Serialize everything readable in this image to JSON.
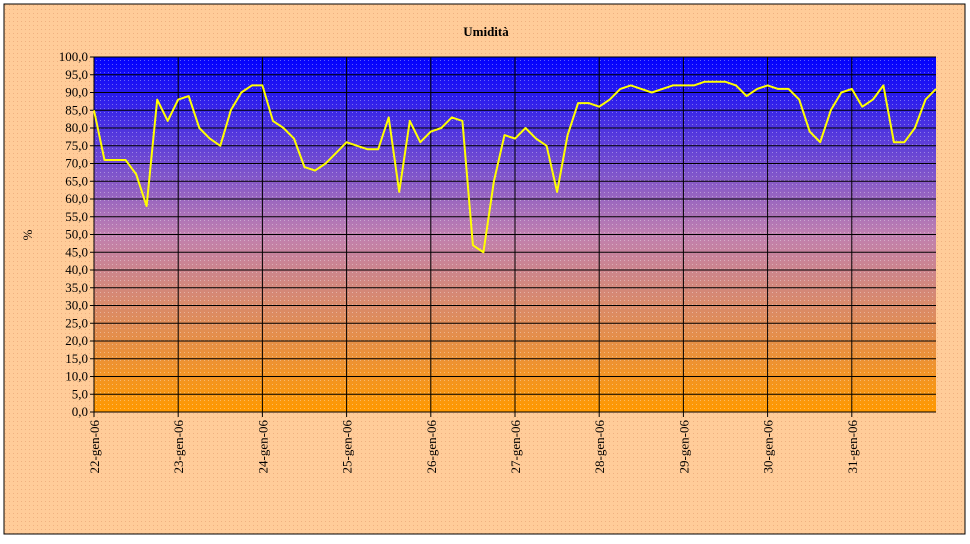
{
  "chart_data": {
    "type": "line",
    "title": "Umidità",
    "ylabel": "%",
    "x": [
      0,
      3,
      6,
      9,
      12,
      15,
      18,
      21,
      24,
      27,
      30,
      33,
      36,
      39,
      42,
      45,
      48,
      51,
      54,
      57,
      60,
      63,
      66,
      69,
      72,
      75,
      78,
      81,
      84,
      87,
      90,
      93,
      96,
      99,
      102,
      105,
      108,
      111,
      114,
      117,
      120,
      123,
      126,
      129,
      132,
      135,
      138,
      141,
      144,
      147,
      150,
      153,
      156,
      159,
      162,
      165,
      168,
      171,
      174,
      177,
      180,
      183,
      186,
      189,
      192,
      195,
      198,
      201,
      204,
      207,
      210,
      213,
      216,
      219,
      222,
      225,
      228,
      231,
      234,
      237,
      240
    ],
    "values": [
      85,
      71,
      71,
      71,
      67,
      58,
      88,
      82,
      88,
      89,
      80,
      77,
      75,
      85,
      90,
      92,
      92,
      82,
      80,
      77,
      69,
      68,
      70,
      73,
      76,
      75,
      74,
      74,
      83,
      62,
      82,
      76,
      79,
      80,
      83,
      82,
      47,
      45,
      65,
      78,
      77,
      80,
      77,
      75,
      62,
      78,
      87,
      87,
      86,
      88,
      91,
      92,
      91,
      90,
      91,
      92,
      92,
      92,
      93,
      93,
      93,
      92,
      89,
      91,
      92,
      91,
      91,
      88,
      79,
      76,
      85,
      90,
      91,
      86,
      88,
      92,
      76,
      76,
      80,
      88,
      91
    ],
    "color": "#ffff00",
    "xlim": [
      0,
      240
    ],
    "xticks": [
      {
        "value": 0,
        "label": "22-gen-06"
      },
      {
        "value": 24,
        "label": "23-gen-06"
      },
      {
        "value": 48,
        "label": "24-gen-06"
      },
      {
        "value": 72,
        "label": "25-gen-06"
      },
      {
        "value": 96,
        "label": "26-gen-06"
      },
      {
        "value": 120,
        "label": "27-gen-06"
      },
      {
        "value": 144,
        "label": "28-gen-06"
      },
      {
        "value": 168,
        "label": "29-gen-06"
      },
      {
        "value": 192,
        "label": "30-gen-06"
      },
      {
        "value": 216,
        "label": "31-gen-06"
      }
    ],
    "ylim": [
      0,
      100
    ],
    "yticks": [
      {
        "value": 0,
        "label": "0,0"
      },
      {
        "value": 5,
        "label": "5,0"
      },
      {
        "value": 10,
        "label": "10,0"
      },
      {
        "value": 15,
        "label": "15,0"
      },
      {
        "value": 20,
        "label": "20,0"
      },
      {
        "value": 25,
        "label": "25,0"
      },
      {
        "value": 30,
        "label": "30,0"
      },
      {
        "value": 35,
        "label": "35,0"
      },
      {
        "value": 40,
        "label": "40,0"
      },
      {
        "value": 45,
        "label": "45,0"
      },
      {
        "value": 50,
        "label": "50,0"
      },
      {
        "value": 55,
        "label": "55,0"
      },
      {
        "value": 60,
        "label": "60,0"
      },
      {
        "value": 65,
        "label": "65,0"
      },
      {
        "value": 70,
        "label": "70,0"
      },
      {
        "value": 75,
        "label": "75,0"
      },
      {
        "value": 80,
        "label": "80,0"
      },
      {
        "value": 85,
        "label": "85,0"
      },
      {
        "value": 90,
        "label": "90,0"
      },
      {
        "value": 95,
        "label": "95,0"
      },
      {
        "value": 100,
        "label": "100,0"
      }
    ],
    "grid": true
  }
}
